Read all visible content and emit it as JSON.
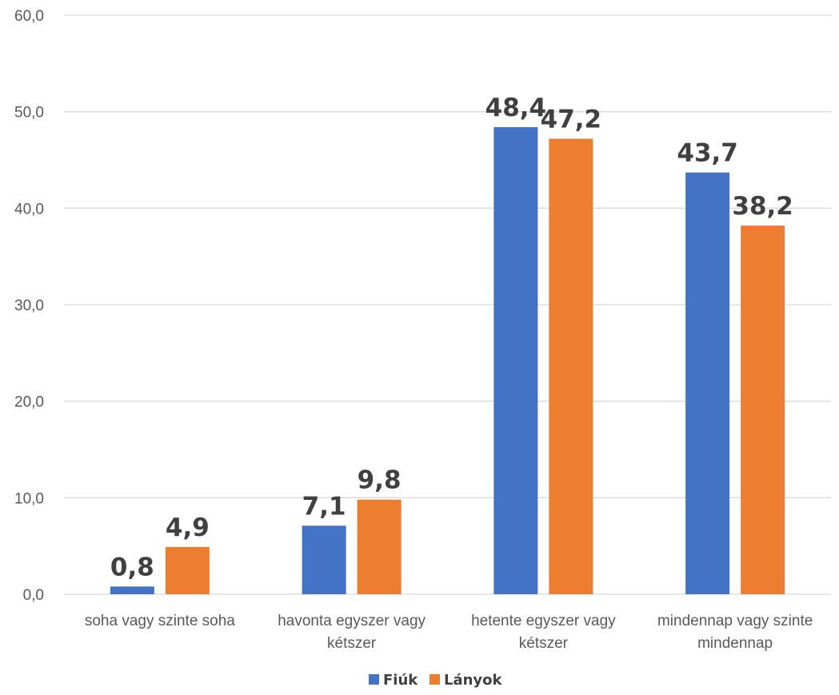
{
  "chart_data": {
    "type": "bar",
    "categories": [
      [
        "soha vagy szinte soha"
      ],
      [
        "havonta egyszer vagy",
        "kétszer"
      ],
      [
        "hetente egyszer vagy",
        "kétszer"
      ],
      [
        "mindennap vagy szinte",
        "mindennap"
      ]
    ],
    "series": [
      {
        "name": "Fiúk",
        "color": "#4472c4",
        "values": [
          0.8,
          7.1,
          48.4,
          43.7
        ],
        "labels": [
          "0,8",
          "7,1",
          "48,4",
          "43,7"
        ]
      },
      {
        "name": "Lányok",
        "color": "#ed7d31",
        "values": [
          4.9,
          9.8,
          47.2,
          38.2
        ],
        "labels": [
          "4,9",
          "9,8",
          "47,2",
          "38,2"
        ]
      }
    ],
    "ylim": [
      0,
      60
    ],
    "yticks": [
      0,
      10,
      20,
      30,
      40,
      50,
      60
    ],
    "ytick_labels": [
      "0,0",
      "10,0",
      "20,0",
      "30,0",
      "40,0",
      "50,0",
      "60,0"
    ],
    "grid": true,
    "legend_position": "bottom",
    "title": "",
    "xlabel": "",
    "ylabel": ""
  }
}
